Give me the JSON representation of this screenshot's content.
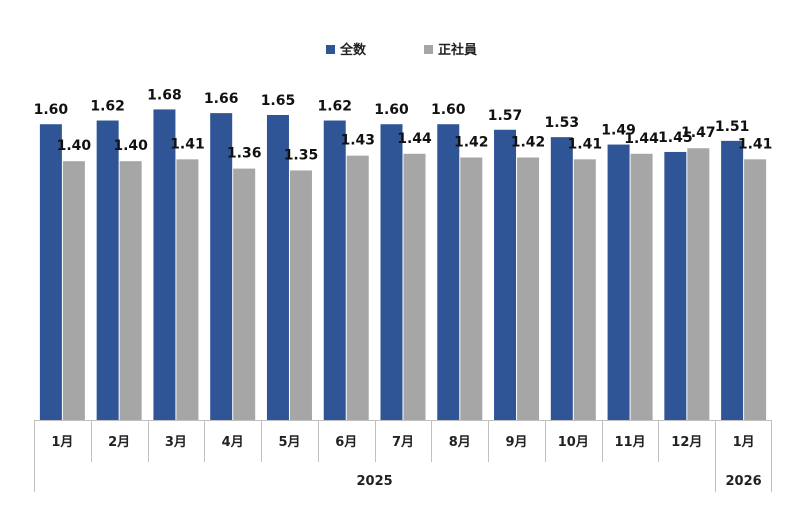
{
  "chart_data": {
    "type": "bar",
    "categories": [
      "1月",
      "2月",
      "3月",
      "4月",
      "5月",
      "6月",
      "7月",
      "8月",
      "9月",
      "10月",
      "11月",
      "12月",
      "1月"
    ],
    "year_groups": [
      {
        "label": "2025",
        "count": 12
      },
      {
        "label": "2026",
        "count": 1
      }
    ],
    "series": [
      {
        "name": "全数",
        "color": "#2f5597",
        "values": [
          1.6,
          1.62,
          1.68,
          1.66,
          1.65,
          1.62,
          1.6,
          1.6,
          1.57,
          1.53,
          1.49,
          1.45,
          1.51
        ]
      },
      {
        "name": "正社員",
        "color": "#a6a6a6",
        "values": [
          1.4,
          1.4,
          1.41,
          1.36,
          1.35,
          1.43,
          1.44,
          1.42,
          1.42,
          1.41,
          1.44,
          1.47,
          1.41
        ]
      }
    ],
    "ylim": [
      0,
      1.85
    ],
    "grid": false,
    "legend": "top-center",
    "data_labels": true,
    "title": "",
    "xlabel": "",
    "ylabel": ""
  }
}
